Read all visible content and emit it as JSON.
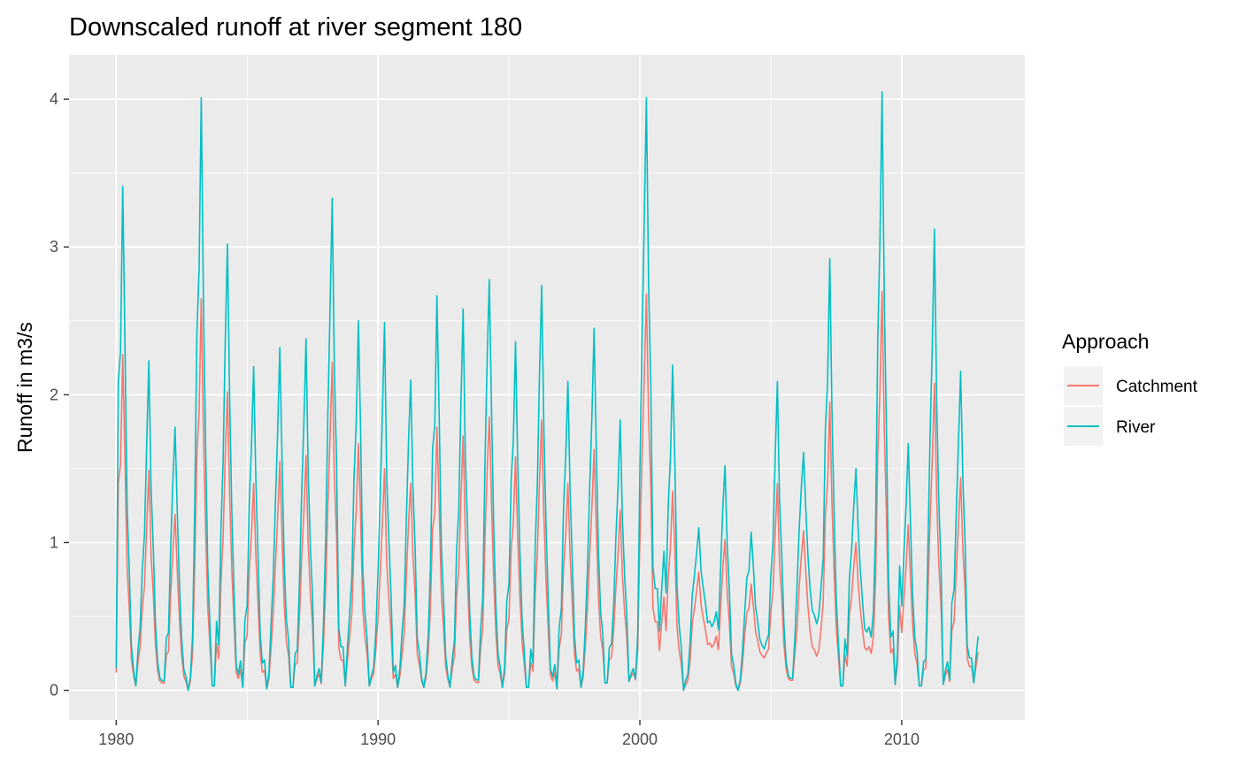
{
  "chart_data": {
    "type": "line",
    "title": "Downscaled runoff at river segment 180",
    "xlabel": "",
    "ylabel": "Runoff in m3/s",
    "xlim": [
      1978.2,
      2014.7
    ],
    "ylim": [
      -0.2,
      4.3
    ],
    "x_ticks": [
      1980,
      1990,
      2000,
      2010
    ],
    "x_tick_labels": [
      "1980",
      "1990",
      "2000",
      "2010"
    ],
    "y_ticks": [
      0,
      1,
      2,
      3,
      4
    ],
    "y_tick_labels": [
      "0",
      "1",
      "2",
      "3",
      "4"
    ],
    "grid": true,
    "legend": {
      "title": "Approach",
      "position": "right"
    },
    "start_year": 1980,
    "end_year": 2013,
    "annual_peaks": {
      "River": [
        3.41,
        2.23,
        1.78,
        4.01,
        3.02,
        2.19,
        2.32,
        2.38,
        3.33,
        2.5,
        2.49,
        2.1,
        2.67,
        2.58,
        2.78,
        2.36,
        2.74,
        2.09,
        2.45,
        1.83,
        4.01,
        2.2,
        1.1,
        1.52,
        1.07,
        2.09,
        1.61,
        2.92,
        1.5,
        4.05,
        1.67,
        3.12,
        2.16
      ],
      "Catchment": [
        2.27,
        1.49,
        1.19,
        2.65,
        2.02,
        1.4,
        1.55,
        1.59,
        2.22,
        1.67,
        1.5,
        1.4,
        1.78,
        1.72,
        1.85,
        1.58,
        1.83,
        1.4,
        1.63,
        1.22,
        2.68,
        1.35,
        0.8,
        1.02,
        0.72,
        1.4,
        1.08,
        1.95,
        1.0,
        2.7,
        1.12,
        2.08,
        1.44
      ]
    },
    "annual_minima": {
      "River": [
        0.03,
        0.02,
        0.0,
        0.03,
        0.02,
        0.01,
        0.02,
        0.03,
        0.03,
        0.03,
        0.02,
        0.02,
        0.02,
        0.02,
        0.02,
        0.02,
        0.01,
        0.02,
        0.05,
        0.06,
        0.4,
        0.0,
        0.43,
        0.0,
        0.28,
        0.04,
        0.45,
        0.03,
        0.36,
        0.04,
        0.03,
        0.04,
        0.05
      ],
      "Catchment": [
        0.03,
        0.02,
        0.0,
        0.03,
        0.02,
        0.01,
        0.02,
        0.03,
        0.03,
        0.03,
        0.02,
        0.02,
        0.02,
        0.02,
        0.02,
        0.02,
        0.01,
        0.02,
        0.05,
        0.06,
        0.27,
        0.0,
        0.29,
        0.0,
        0.22,
        0.04,
        0.23,
        0.03,
        0.25,
        0.04,
        0.03,
        0.04,
        0.05
      ]
    },
    "series": [
      {
        "name": "Catchment",
        "color": "#F8766D"
      },
      {
        "name": "River",
        "color": "#00BFC4"
      }
    ]
  }
}
